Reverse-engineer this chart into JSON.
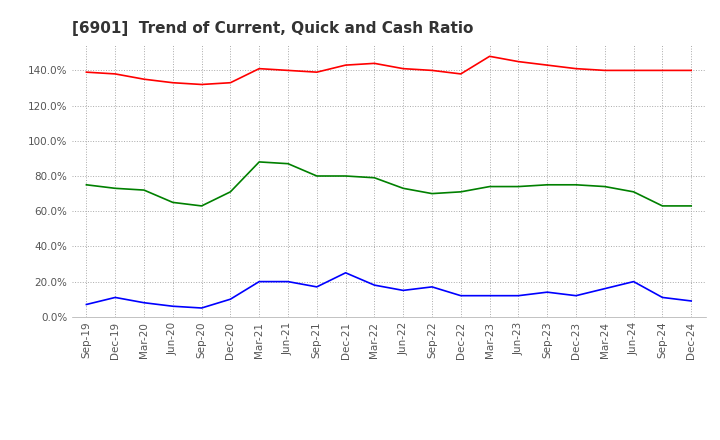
{
  "title": "[6901]  Trend of Current, Quick and Cash Ratio",
  "x_labels": [
    "Sep-19",
    "Dec-19",
    "Mar-20",
    "Jun-20",
    "Sep-20",
    "Dec-20",
    "Mar-21",
    "Jun-21",
    "Sep-21",
    "Dec-21",
    "Mar-22",
    "Jun-22",
    "Sep-22",
    "Dec-22",
    "Mar-23",
    "Jun-23",
    "Sep-23",
    "Dec-23",
    "Mar-24",
    "Jun-24",
    "Sep-24",
    "Dec-24"
  ],
  "current_ratio": [
    139,
    138,
    135,
    133,
    132,
    133,
    141,
    140,
    139,
    143,
    144,
    141,
    140,
    138,
    148,
    145,
    143,
    141,
    140,
    140,
    140,
    140
  ],
  "quick_ratio": [
    75,
    73,
    72,
    65,
    63,
    71,
    88,
    87,
    80,
    80,
    79,
    73,
    70,
    71,
    74,
    74,
    75,
    75,
    74,
    71,
    63,
    63
  ],
  "cash_ratio": [
    7,
    11,
    8,
    6,
    5,
    10,
    20,
    20,
    17,
    25,
    18,
    15,
    17,
    12,
    12,
    12,
    14,
    12,
    16,
    20,
    11,
    9
  ],
  "ylim": [
    0,
    155
  ],
  "yticks": [
    0,
    20,
    40,
    60,
    80,
    100,
    120,
    140
  ],
  "current_color": "#ff0000",
  "quick_color": "#008000",
  "cash_color": "#0000ff",
  "background_color": "#ffffff",
  "grid_color": "#aaaaaa",
  "title_fontsize": 11,
  "tick_fontsize": 7.5,
  "legend_fontsize": 8.5
}
